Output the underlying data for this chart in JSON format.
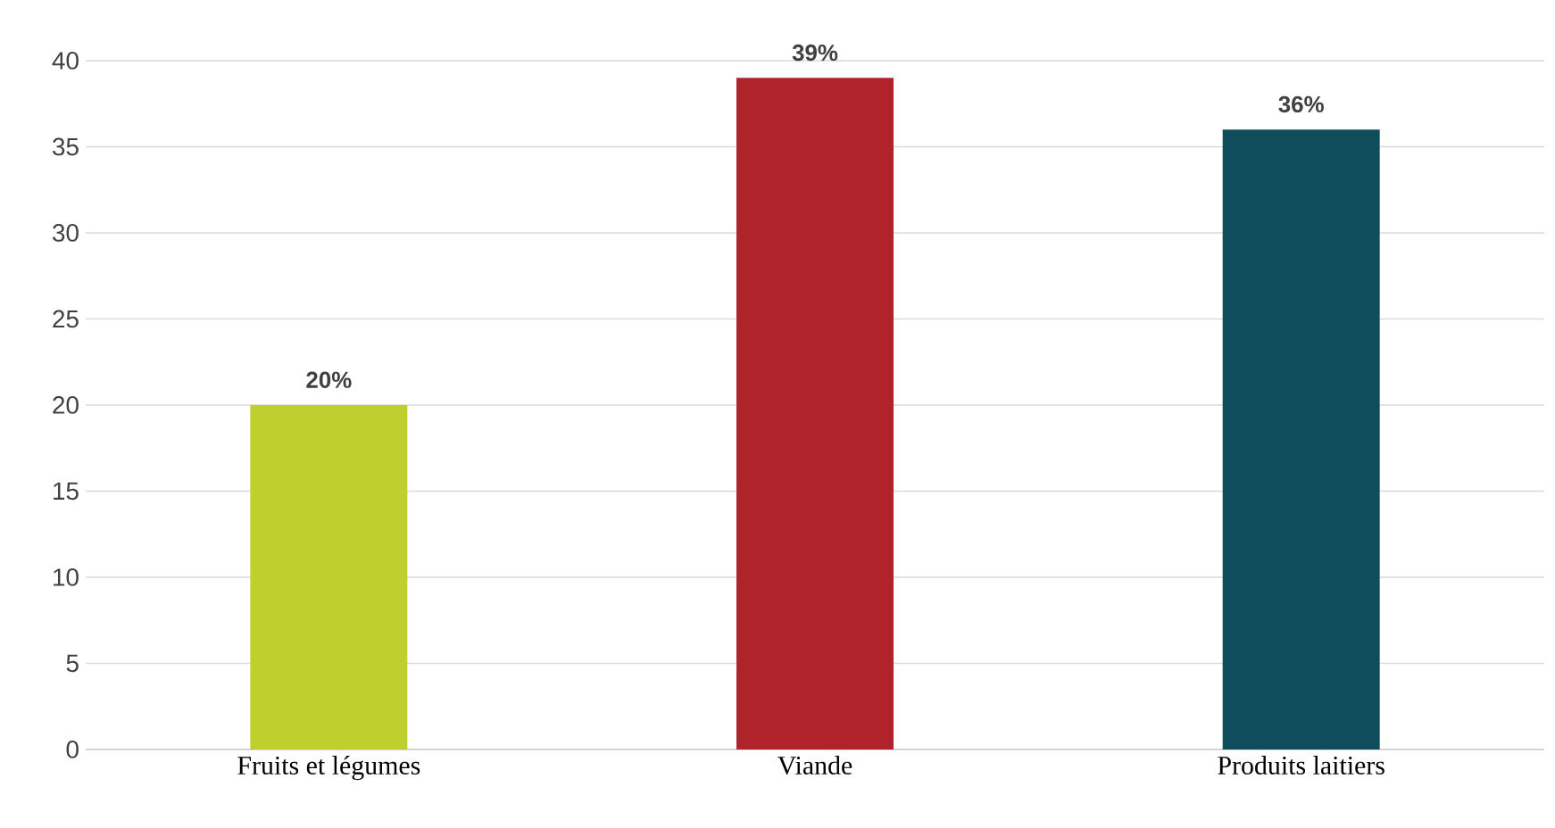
{
  "chart_data": {
    "type": "bar",
    "categories": [
      "Fruits et légumes",
      "Viande",
      "Produits laitiers"
    ],
    "values": [
      20,
      39,
      36
    ],
    "colors": [
      "#bfd02e",
      "#b0232a",
      "#0f4c5c"
    ],
    "value_labels": [
      "20%",
      "39%",
      "36%"
    ],
    "ylim": [
      0,
      40
    ],
    "yticks": [
      0,
      5,
      10,
      15,
      20,
      25,
      30,
      35,
      40
    ],
    "grid": "y"
  }
}
